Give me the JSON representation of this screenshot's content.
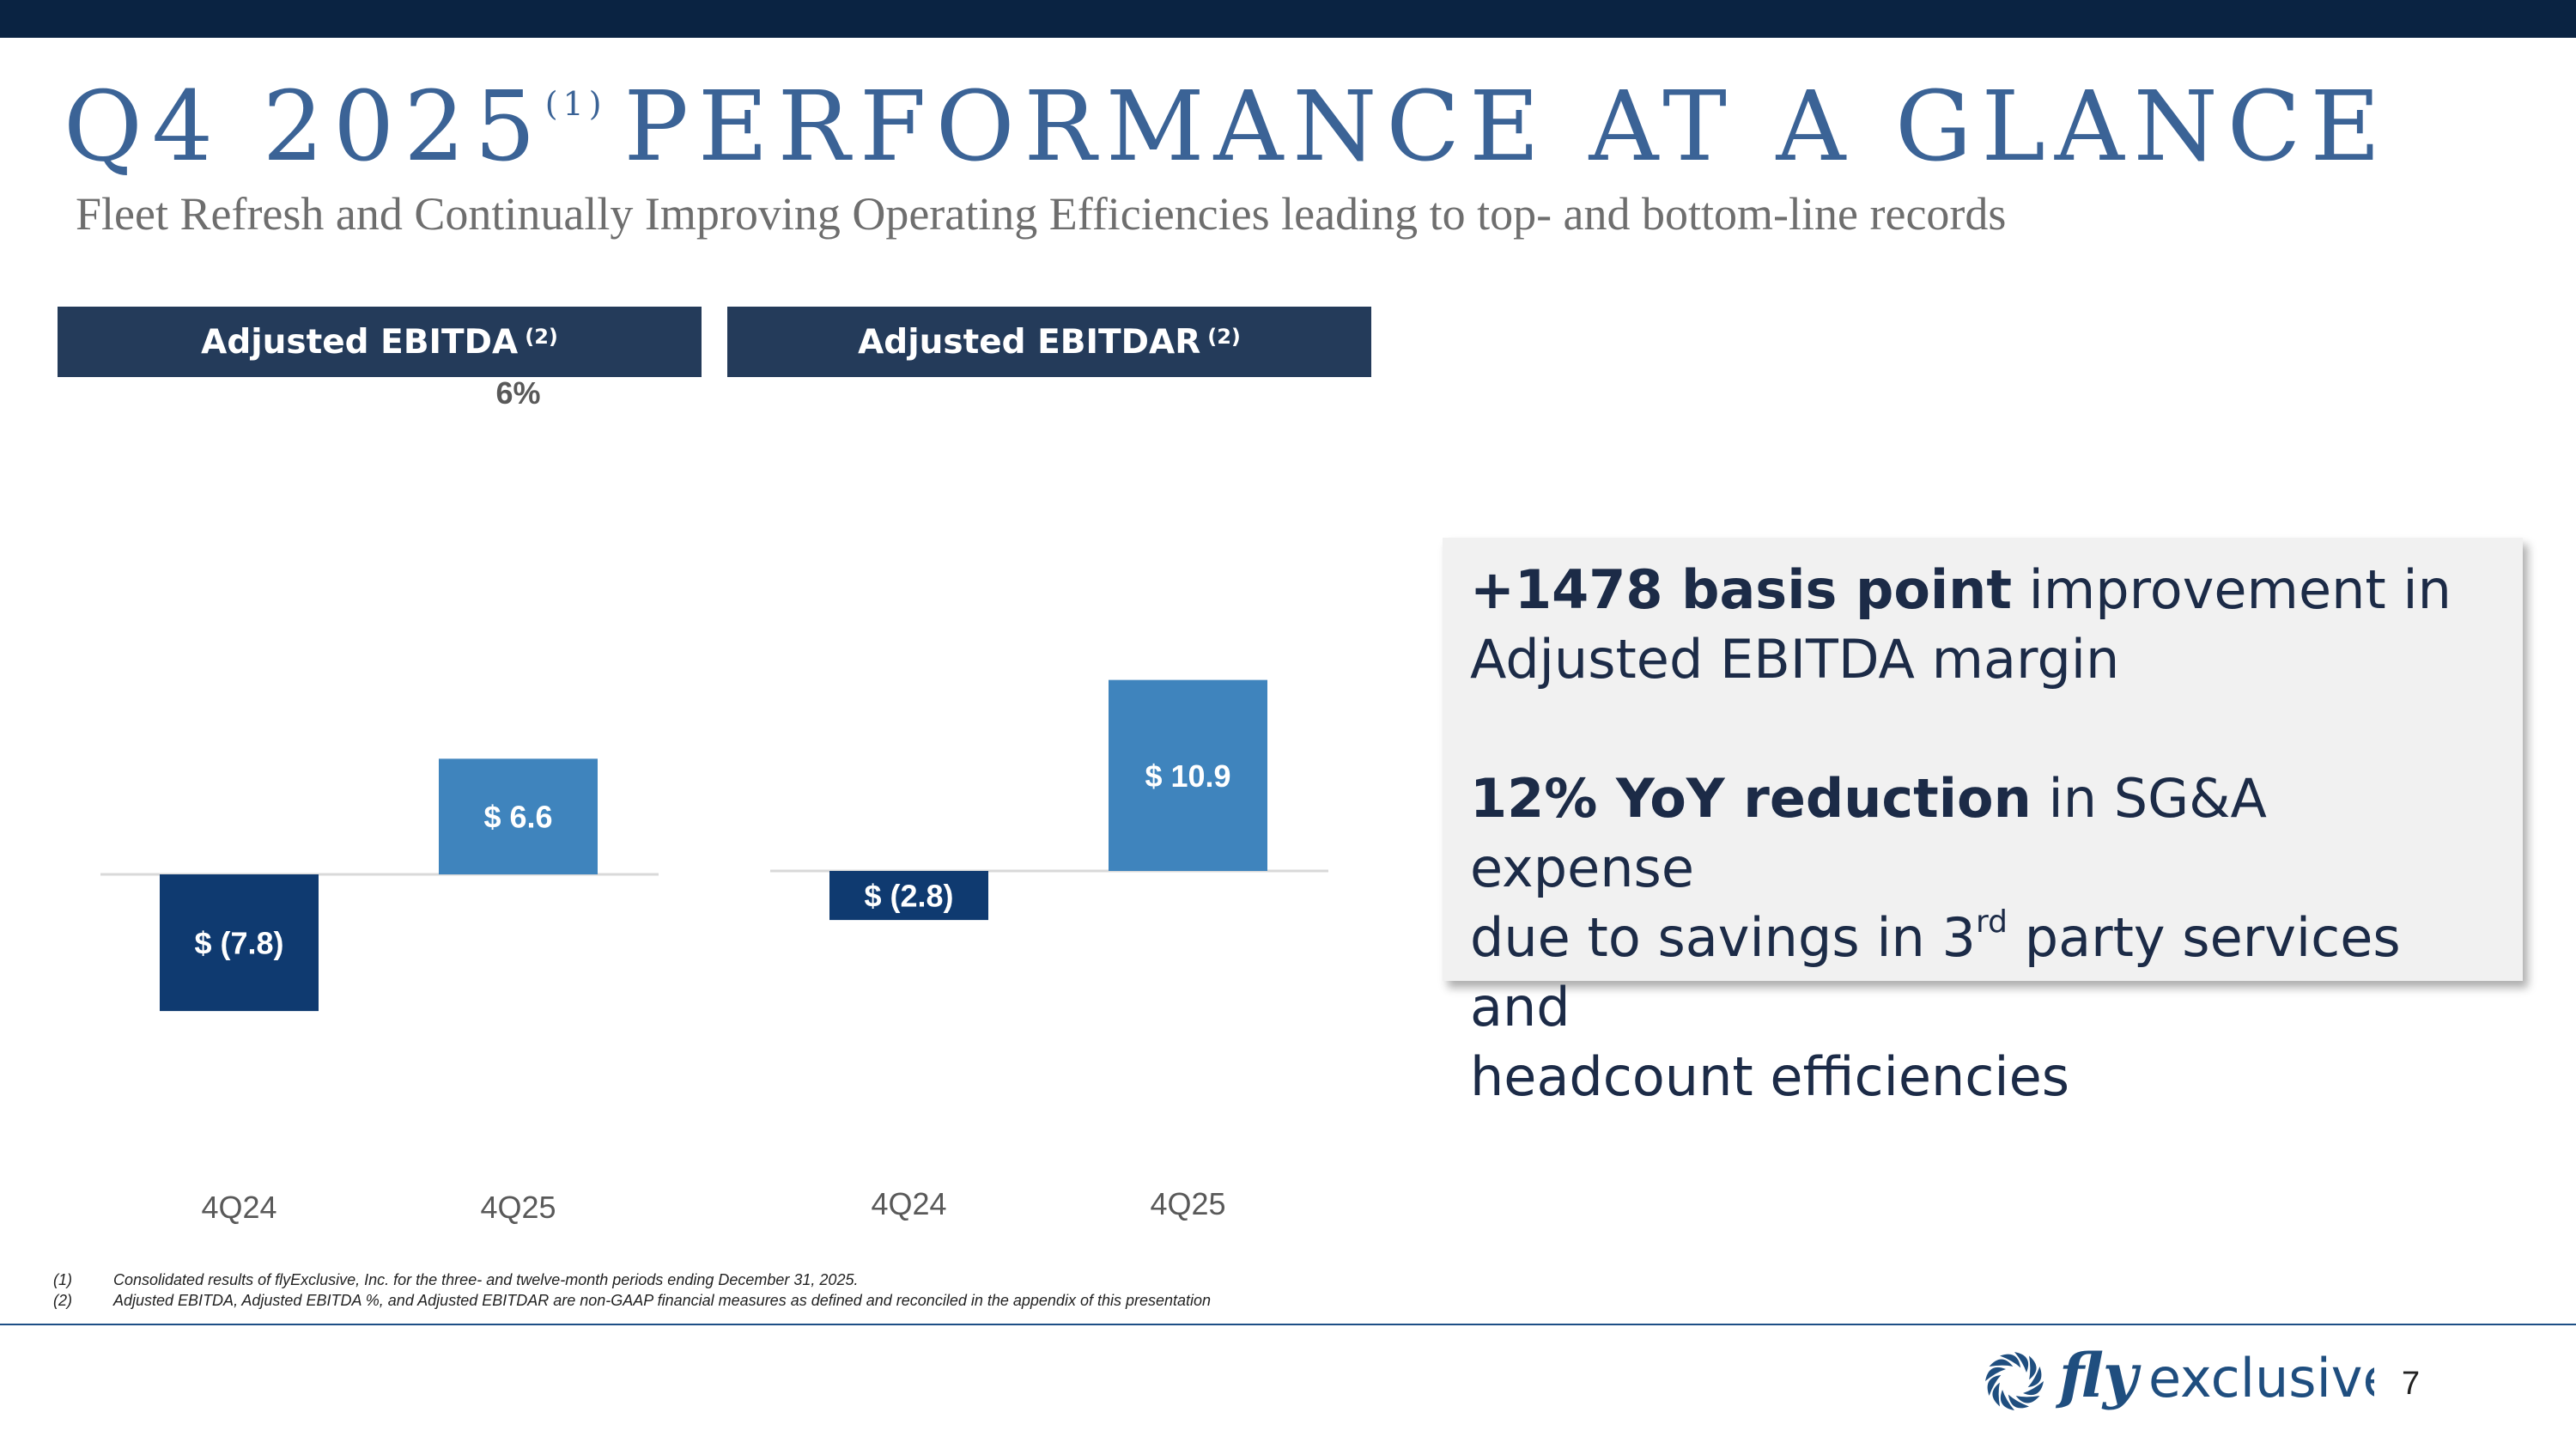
{
  "header": {
    "title_main": "Q4 2025",
    "title_sup": "(1)",
    "title_rest": "PERFORMANCE AT A GLANCE",
    "subtitle": "Fleet Refresh and Continually Improving Operating Efficiencies leading to top- and bottom-line records"
  },
  "chart_data": [
    {
      "type": "bar",
      "title": "Adjusted EBITDA",
      "title_footnote": "(2)",
      "categories": [
        "4Q24",
        "4Q25"
      ],
      "values": [
        -7.8,
        6.6
      ],
      "value_labels": [
        "$ (7.8)",
        "$ 6.6"
      ],
      "annotation": "6%",
      "colors": [
        "#0f3a70",
        "#3f84bd"
      ],
      "ylim": [
        -8,
        14
      ]
    },
    {
      "type": "bar",
      "title": "Adjusted EBITDAR",
      "title_footnote": "(2)",
      "categories": [
        "4Q24",
        "4Q25"
      ],
      "values": [
        -2.8,
        10.9
      ],
      "value_labels": [
        "$ (2.8)",
        "$ 10.9"
      ],
      "colors": [
        "#0f3a70",
        "#3f84bd"
      ],
      "ylim": [
        -8,
        14
      ]
    }
  ],
  "callout": {
    "line1_bold": "+1478 basis point",
    "line1_rest": " improvement in",
    "line2": "Adjusted EBITDA margin",
    "line3_bold": "12% YoY reduction",
    "line3_rest": " in SG&A expense",
    "line4_a": "due to savings in 3",
    "line4_sup": "rd",
    "line4_b": " party services and",
    "line5": "headcount efficiencies"
  },
  "footnotes": [
    {
      "num": "(1)",
      "text": "Consolidated results of flyExclusive, Inc. for the three- and twelve-month periods ending December 31, 2025."
    },
    {
      "num": "(2)",
      "text": "Adjusted EBITDA, Adjusted EBITDA %, and Adjusted EBITDAR are non-GAAP financial measures as defined and reconciled in the appendix of this presentation"
    }
  ],
  "footer": {
    "logo_text_fly": "fly",
    "logo_text_exclusive": "exclusive",
    "page_number": "7"
  },
  "colors": {
    "navy": "#0a2342",
    "title_blue": "#3b6396",
    "header_bg": "#243b5a",
    "bar_dark": "#0f3a70",
    "bar_light": "#3f84bd"
  }
}
